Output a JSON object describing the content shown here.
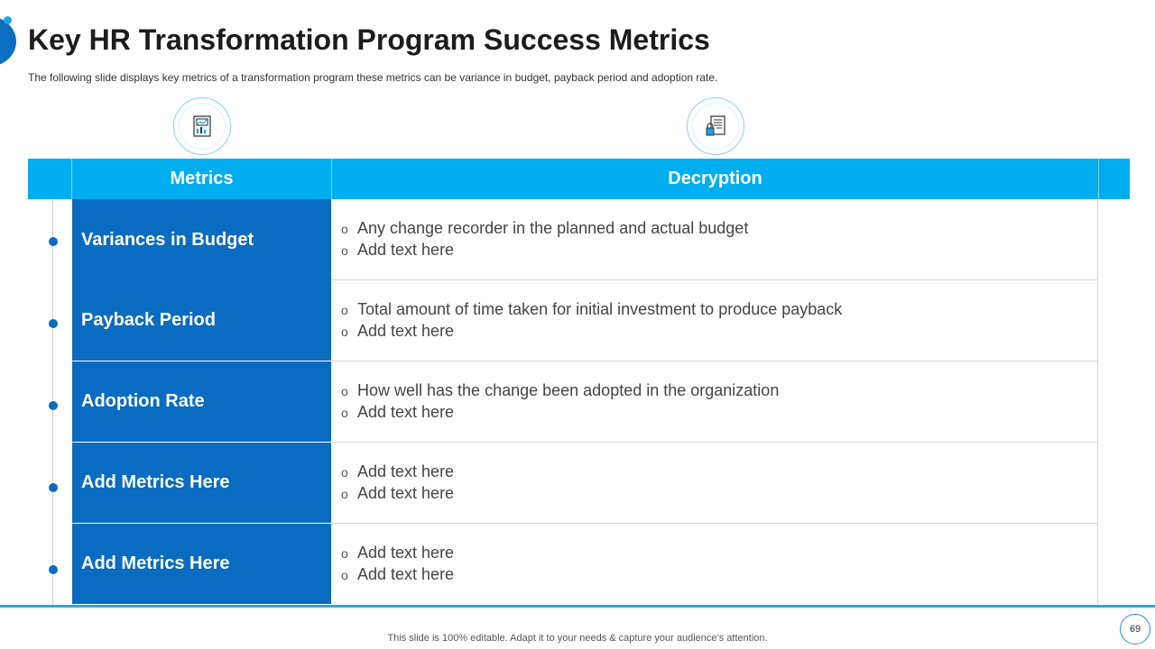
{
  "slide": {
    "title": "Key HR Transformation Program Success Metrics",
    "subtitle": "The following  slide displays key metrics of a transformation  program these metrics can be variance  in budget, payback period and adoption rate.",
    "accent_color": "#00aeef",
    "primary_color": "#0a6cc0"
  },
  "icons": {
    "metrics_icon": "report-chart-icon",
    "description_icon": "document-lock-icon"
  },
  "table": {
    "headers": {
      "metrics": "Metrics",
      "description": "Decryption"
    },
    "rows": [
      {
        "metric": "Variances in Budget",
        "bullets": [
          "Any change recorder in the planned and actual budget",
          "Add text here"
        ]
      },
      {
        "metric": "Payback Period",
        "bullets": [
          "Total amount of time taken for initial investment to produce payback",
          "Add text here"
        ]
      },
      {
        "metric": "Adoption Rate",
        "bullets": [
          "How well has the change been adopted in the organization",
          "Add text here"
        ]
      },
      {
        "metric": "Add Metrics Here",
        "bullets": [
          "Add text here",
          "Add text here"
        ]
      },
      {
        "metric": "Add Metrics Here",
        "bullets": [
          "Add text here",
          "Add text here"
        ]
      }
    ],
    "bullet_symbol": "o"
  },
  "footer": {
    "text": "This slide is 100% editable. Adapt it to your needs & capture your audience’s attention.",
    "page_number": "69"
  }
}
